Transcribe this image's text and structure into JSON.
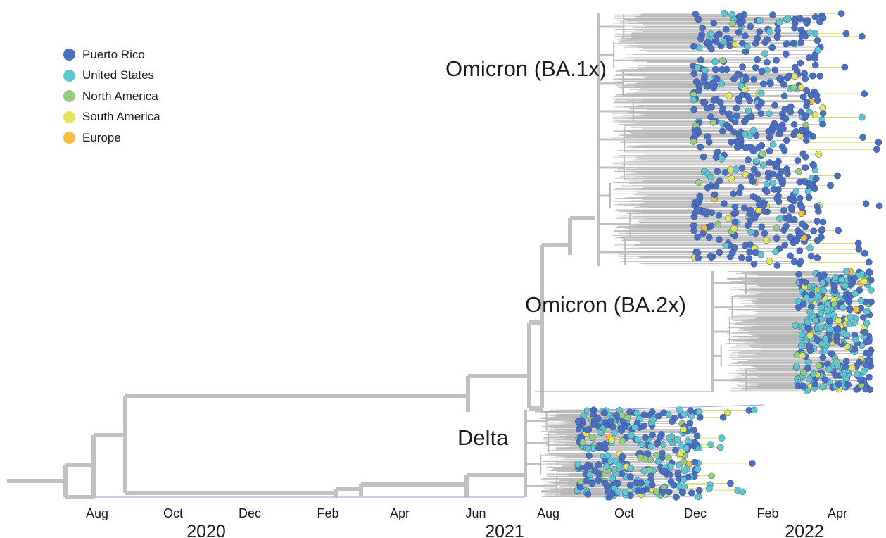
{
  "legend": [
    {
      "label": "Puerto Rico",
      "color": "#4a6fc2"
    },
    {
      "label": "United States",
      "color": "#5fc6cf"
    },
    {
      "label": "North America",
      "color": "#96cc7a"
    },
    {
      "label": "South America",
      "color": "#e5e55a"
    },
    {
      "label": "Europe",
      "color": "#f8bd3c"
    }
  ],
  "clades": {
    "omicron_ba1": "Omicron (BA.1x)",
    "omicron_ba2": "Omicron (BA.2x)",
    "delta": "Delta"
  },
  "axis": {
    "months": [
      "Aug",
      "Oct",
      "Dec",
      "Feb",
      "Apr",
      "Jun",
      "Aug",
      "Oct",
      "Dec",
      "Feb",
      "Apr"
    ],
    "years": [
      "2020",
      "2021",
      "2022"
    ]
  },
  "colors": {
    "branch": "#c0c0c0",
    "fine_branch": "#b8b8b8",
    "tip_line": "#8aa0d8"
  }
}
